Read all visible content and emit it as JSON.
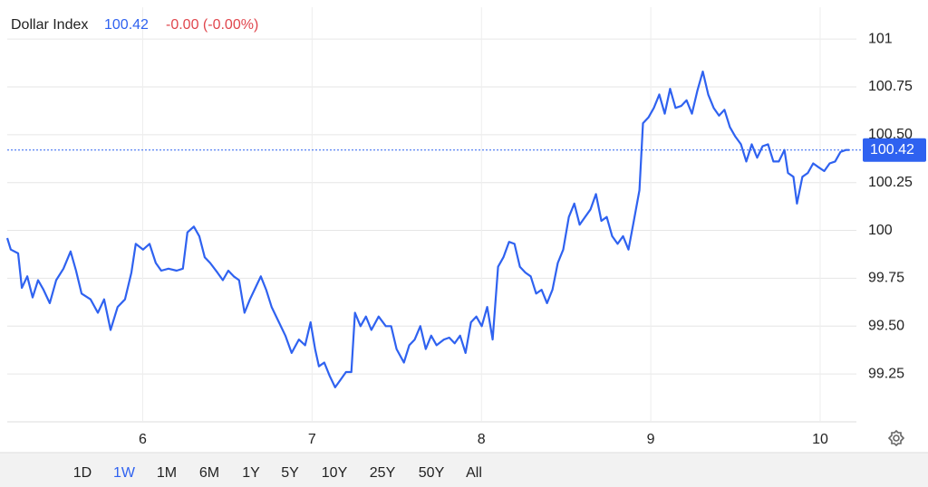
{
  "header": {
    "name": "Dollar Index",
    "change": "-0.00 (-0.00%)"
  },
  "chart_data": {
    "type": "line",
    "color": "#2f62f0",
    "last_price": 100.42,
    "grid": true,
    "x": [
      5.2,
      5.221,
      5.264,
      5.286,
      5.318,
      5.35,
      5.382,
      5.414,
      5.451,
      5.489,
      5.532,
      5.574,
      5.606,
      5.639,
      5.692,
      5.735,
      5.772,
      5.81,
      5.852,
      5.895,
      5.933,
      5.959,
      6.002,
      6.04,
      6.077,
      6.109,
      6.152,
      6.2,
      6.237,
      6.264,
      6.302,
      6.334,
      6.366,
      6.398,
      6.441,
      6.473,
      6.505,
      6.537,
      6.569,
      6.601,
      6.633,
      6.665,
      6.697,
      6.729,
      6.761,
      6.804,
      6.842,
      6.879,
      6.922,
      6.959,
      6.991,
      7.018,
      7.04,
      7.072,
      7.104,
      7.136,
      7.168,
      7.2,
      7.232,
      7.253,
      7.286,
      7.318,
      7.35,
      7.393,
      7.435,
      7.467,
      7.499,
      7.542,
      7.574,
      7.606,
      7.639,
      7.671,
      7.703,
      7.735,
      7.778,
      7.81,
      7.842,
      7.874,
      7.906,
      7.938,
      7.97,
      8.002,
      8.034,
      8.066,
      8.098,
      8.13,
      8.163,
      8.195,
      8.227,
      8.259,
      8.291,
      8.323,
      8.355,
      8.387,
      8.419,
      8.451,
      8.483,
      8.516,
      8.548,
      8.58,
      8.612,
      8.644,
      8.676,
      8.708,
      8.74,
      8.772,
      8.804,
      8.836,
      8.868,
      8.9,
      8.933,
      8.954,
      8.986,
      9.018,
      9.05,
      9.082,
      9.114,
      9.146,
      9.179,
      9.211,
      9.243,
      9.275,
      9.307,
      9.339,
      9.371,
      9.403,
      9.435,
      9.467,
      9.499,
      9.532,
      9.564,
      9.596,
      9.628,
      9.66,
      9.692,
      9.724,
      9.756,
      9.789,
      9.81,
      9.842,
      9.863,
      9.895,
      9.927,
      9.959,
      9.991,
      10.024,
      10.056,
      10.088,
      10.12,
      10.152,
      10.173
    ],
    "values": [
      99.96,
      99.9,
      99.88,
      99.7,
      99.76,
      99.65,
      99.74,
      99.69,
      99.62,
      99.74,
      99.8,
      99.89,
      99.79,
      99.67,
      99.64,
      99.57,
      99.64,
      99.48,
      99.6,
      99.64,
      99.78,
      99.93,
      99.9,
      99.93,
      99.83,
      99.79,
      99.8,
      99.79,
      99.8,
      99.99,
      100.02,
      99.97,
      99.86,
      99.83,
      99.78,
      99.74,
      99.79,
      99.76,
      99.74,
      99.57,
      99.64,
      99.7,
      99.76,
      99.69,
      99.6,
      99.52,
      99.45,
      99.36,
      99.43,
      99.4,
      99.52,
      99.38,
      99.29,
      99.31,
      99.24,
      99.18,
      99.22,
      99.26,
      99.26,
      99.57,
      99.5,
      99.55,
      99.48,
      99.55,
      99.5,
      99.5,
      99.38,
      99.31,
      99.4,
      99.43,
      99.5,
      99.38,
      99.45,
      99.4,
      99.43,
      99.44,
      99.41,
      99.45,
      99.36,
      99.52,
      99.55,
      99.5,
      99.6,
      99.43,
      99.81,
      99.86,
      99.94,
      99.93,
      99.81,
      99.78,
      99.76,
      99.67,
      99.69,
      99.62,
      99.69,
      99.83,
      99.9,
      100.07,
      100.14,
      100.03,
      100.07,
      100.11,
      100.19,
      100.05,
      100.07,
      99.97,
      99.93,
      99.97,
      99.9,
      100.05,
      100.21,
      100.56,
      100.59,
      100.64,
      100.71,
      100.61,
      100.74,
      100.64,
      100.65,
      100.68,
      100.61,
      100.73,
      100.83,
      100.71,
      100.64,
      100.6,
      100.63,
      100.54,
      100.49,
      100.45,
      100.36,
      100.45,
      100.38,
      100.44,
      100.45,
      100.36,
      100.36,
      100.42,
      100.3,
      100.28,
      100.14,
      100.28,
      100.3,
      100.35,
      100.33,
      100.31,
      100.35,
      100.36,
      100.41,
      100.42,
      100.42
    ],
    "xlim": [
      5.2,
      10.214
    ],
    "xticks": [
      6,
      7,
      8,
      9,
      10
    ],
    "ylim": [
      99.0,
      101.166
    ],
    "yticks": [
      101,
      100.75,
      {
        "value": 100.5,
        "label": "100.50"
      },
      100.25,
      100,
      99.75,
      {
        "value": 99.5,
        "label": "99.50"
      },
      99.25
    ]
  },
  "ranges": [
    "1D",
    "1W",
    "1M",
    "6M",
    "1Y",
    "5Y",
    "10Y",
    "25Y",
    "50Y",
    "All"
  ],
  "active_range": "1W"
}
